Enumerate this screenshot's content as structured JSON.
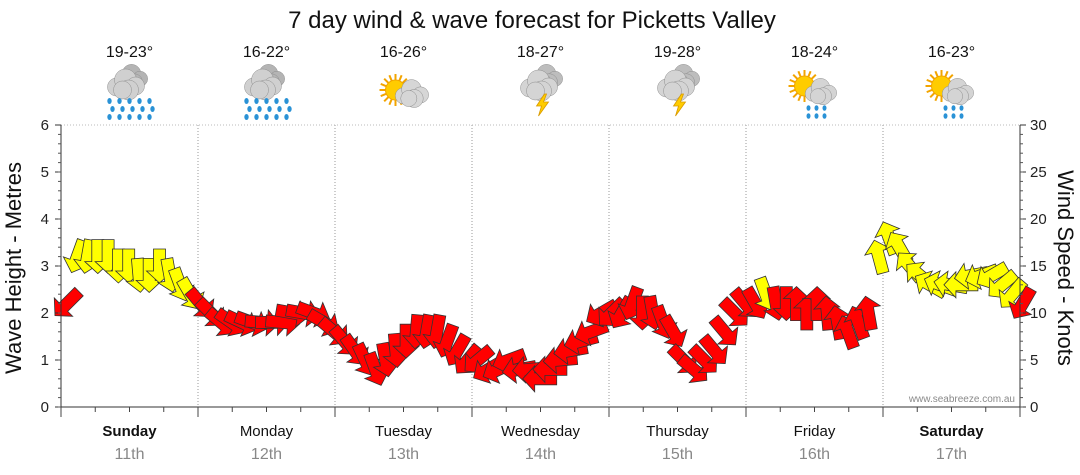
{
  "chart_data": {
    "type": "line",
    "title": "7 day wind & wave forecast for Picketts Valley",
    "ylabel_left": "Wave Height - Metres",
    "ylabel_right": "Wind Speed - Knots",
    "ylim_left": [
      0,
      6
    ],
    "ylim_right": [
      0,
      30
    ],
    "yticks_left": [
      "0",
      "1",
      "2",
      "3",
      "4",
      "5",
      "6"
    ],
    "yticks_right": [
      "0",
      "5",
      "10",
      "15",
      "20",
      "25",
      "30"
    ],
    "grid": "dotted vertical at day boundaries",
    "credit": "www.seabreeze.com.au",
    "days": [
      {
        "name": "Sunday",
        "date": "11th",
        "bold": true,
        "temp": "19-23°",
        "icon": "rain-cloud-icon"
      },
      {
        "name": "Monday",
        "date": "12th",
        "bold": false,
        "temp": "16-22°",
        "icon": "rain-cloud-icon"
      },
      {
        "name": "Tuesday",
        "date": "13th",
        "bold": false,
        "temp": "16-26°",
        "icon": "partly-cloudy-sun-icon"
      },
      {
        "name": "Wednesday",
        "date": "14th",
        "bold": false,
        "temp": "18-27°",
        "icon": "thunderstorm-icon"
      },
      {
        "name": "Thursday",
        "date": "15th",
        "bold": false,
        "temp": "19-28°",
        "icon": "thunderstorm-icon"
      },
      {
        "name": "Friday",
        "date": "16th",
        "bold": false,
        "temp": "18-24°",
        "icon": "sun-showers-icon"
      },
      {
        "name": "Saturday",
        "date": "17th",
        "bold": true,
        "temp": "16-23°",
        "icon": "sun-showers-icon"
      }
    ],
    "arrow_colors": {
      "light": "#ffff00",
      "strong": "#ff0000"
    },
    "series": [
      {
        "name": "Wind Speed (arrows)",
        "unit": "knots",
        "comment_free": true,
        "t": [
          0.0,
          0.15,
          0.3,
          0.45,
          0.6,
          0.75,
          0.9,
          1.05,
          1.2,
          1.35,
          1.5,
          1.65,
          1.8,
          1.95,
          2.1,
          2.25,
          2.4,
          2.55,
          2.7,
          2.85,
          3.0,
          3.15,
          3.3,
          3.45,
          3.6,
          3.75,
          3.9,
          4.05,
          4.2,
          4.35,
          4.5,
          4.65,
          4.8,
          4.95,
          5.1,
          5.25,
          5.4,
          5.55,
          5.7,
          5.85,
          6.0,
          6.15,
          6.3,
          6.45,
          6.6,
          6.75,
          6.9,
          7.05,
          7.2,
          7.35,
          7.5,
          7.65,
          7.8,
          7.95,
          8.1,
          8.25,
          8.4,
          8.55,
          8.7,
          8.85,
          9.0,
          9.15,
          9.3,
          9.45,
          9.6,
          9.75,
          9.9,
          10.05,
          10.2,
          10.35,
          10.5,
          10.65,
          10.8,
          10.95,
          11.1,
          11.25,
          11.4,
          11.55,
          11.7,
          11.85,
          12.0,
          12.15,
          12.3,
          12.45,
          12.6,
          12.75,
          12.9,
          13.05,
          13.2,
          13.35,
          13.5,
          13.65,
          13.8,
          13.95
        ],
        "values": [
          11,
          16,
          16,
          16,
          16,
          15,
          15,
          14,
          14,
          15,
          14,
          13,
          12,
          11,
          10,
          9,
          9,
          9,
          9,
          9,
          9,
          9,
          10,
          10,
          10,
          9,
          8,
          7,
          6,
          5,
          4,
          5,
          6,
          7,
          8,
          8,
          8,
          7,
          6,
          5,
          5,
          4,
          4,
          5,
          4,
          4,
          3,
          4,
          5,
          6,
          7,
          8,
          10,
          10,
          10,
          11,
          10,
          10,
          9,
          8,
          5,
          4,
          5,
          6,
          8,
          10,
          11,
          11,
          12,
          11,
          11,
          11,
          10,
          11,
          10,
          9,
          8,
          9,
          10,
          16,
          18,
          17,
          15,
          14,
          13,
          13,
          13,
          13,
          14,
          14,
          14,
          13,
          12,
          11
        ],
        "directions_deg": [
          225,
          200,
          190,
          180,
          180,
          180,
          180,
          175,
          180,
          180,
          170,
          160,
          150,
          140,
          135,
          130,
          125,
          115,
          110,
          95,
          90,
          95,
          100,
          100,
          110,
          120,
          130,
          140,
          145,
          155,
          160,
          170,
          175,
          180,
          185,
          190,
          190,
          200,
          210,
          220,
          230,
          240,
          245,
          250,
          260,
          265,
          270,
          270,
          265,
          260,
          255,
          250,
          240,
          225,
          210,
          200,
          180,
          170,
          160,
          150,
          135,
          130,
          135,
          140,
          140,
          135,
          140,
          150,
          160,
          170,
          180,
          0,
          0,
          0,
          355,
          350,
          340,
          340,
          350,
          345,
          340,
          330,
          320,
          310,
          300,
          290,
          280,
          270,
          260,
          250,
          240,
          230,
          220,
          210
        ]
      }
    ]
  }
}
